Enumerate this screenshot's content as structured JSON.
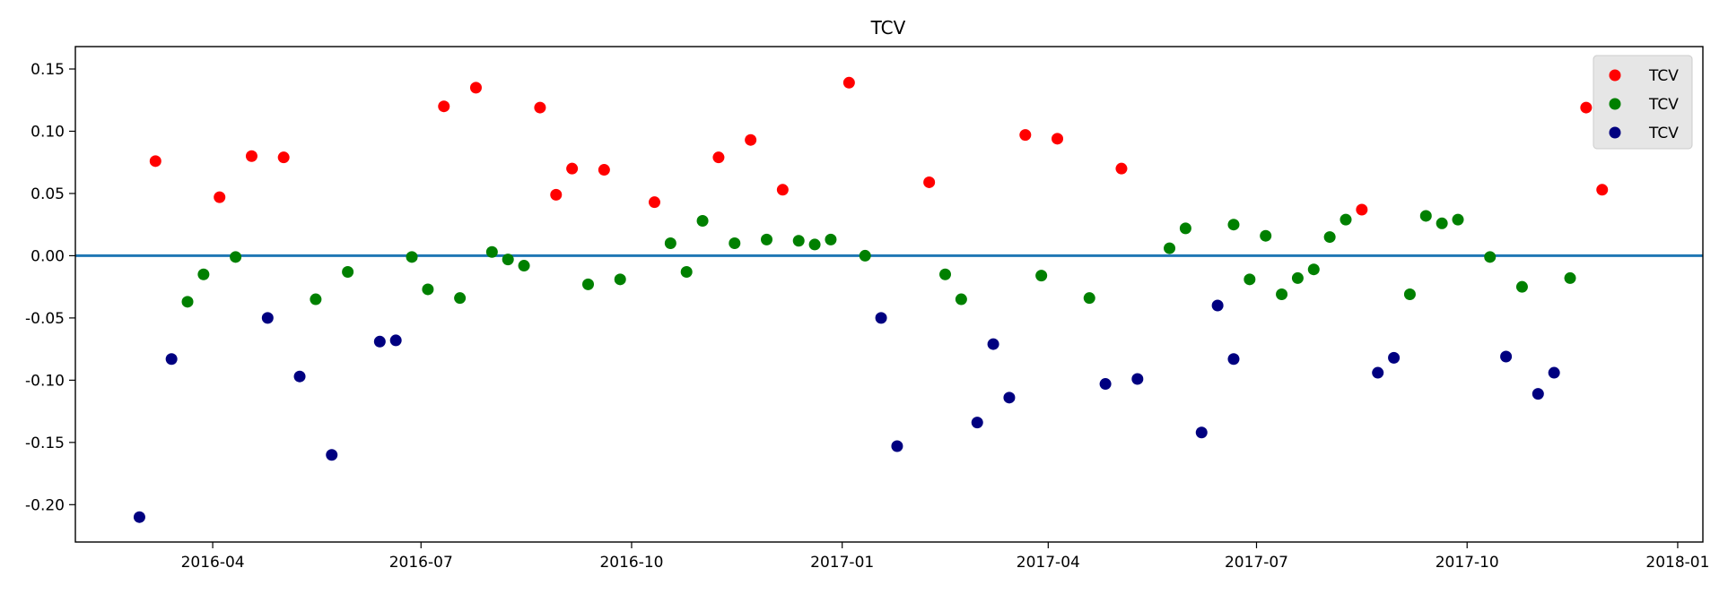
{
  "chart_data": {
    "type": "scatter",
    "title": "TCV",
    "xlabel": "",
    "ylabel": "",
    "x_axis_type": "date",
    "xlim": [
      "2016-02-01",
      "2018-01-12"
    ],
    "ylim": [
      -0.23,
      0.168
    ],
    "x_ticks": [
      {
        "date": "2016-04-01",
        "label": "2016-04"
      },
      {
        "date": "2016-07-01",
        "label": "2016-07"
      },
      {
        "date": "2016-10-01",
        "label": "2016-10"
      },
      {
        "date": "2017-01-01",
        "label": "2017-01"
      },
      {
        "date": "2017-04-01",
        "label": "2017-04"
      },
      {
        "date": "2017-07-01",
        "label": "2017-07"
      },
      {
        "date": "2017-10-01",
        "label": "2017-10"
      },
      {
        "date": "2018-01-01",
        "label": "2018-01"
      }
    ],
    "y_ticks": [
      {
        "value": 0.15,
        "label": "0.15"
      },
      {
        "value": 0.1,
        "label": "0.10"
      },
      {
        "value": 0.05,
        "label": "0.05"
      },
      {
        "value": 0.0,
        "label": "0.00"
      },
      {
        "value": -0.05,
        "label": "-0.05"
      },
      {
        "value": -0.1,
        "label": "-0.10"
      },
      {
        "value": -0.15,
        "label": "-0.15"
      },
      {
        "value": -0.2,
        "label": "-0.20"
      }
    ],
    "grid": false,
    "legend_position": "top-right",
    "reference_line": {
      "y": 0.0,
      "color": "#1f77b4"
    },
    "series": [
      {
        "name": "TCV",
        "color": "#ff0000",
        "points": [
          {
            "x": "2016-03-07",
            "y": 0.076
          },
          {
            "x": "2016-04-04",
            "y": 0.047
          },
          {
            "x": "2016-04-18",
            "y": 0.08
          },
          {
            "x": "2016-05-02",
            "y": 0.079
          },
          {
            "x": "2016-07-11",
            "y": 0.12
          },
          {
            "x": "2016-07-25",
            "y": 0.135
          },
          {
            "x": "2016-08-22",
            "y": 0.119
          },
          {
            "x": "2016-08-29",
            "y": 0.049
          },
          {
            "x": "2016-09-05",
            "y": 0.07
          },
          {
            "x": "2016-09-19",
            "y": 0.069
          },
          {
            "x": "2016-10-11",
            "y": 0.043
          },
          {
            "x": "2016-11-08",
            "y": 0.079
          },
          {
            "x": "2016-11-22",
            "y": 0.093
          },
          {
            "x": "2016-12-06",
            "y": 0.053
          },
          {
            "x": "2017-01-04",
            "y": 0.139
          },
          {
            "x": "2017-02-08",
            "y": 0.059
          },
          {
            "x": "2017-03-22",
            "y": 0.097
          },
          {
            "x": "2017-04-05",
            "y": 0.094
          },
          {
            "x": "2017-05-03",
            "y": 0.07
          },
          {
            "x": "2017-08-16",
            "y": 0.037
          },
          {
            "x": "2017-11-22",
            "y": 0.119
          },
          {
            "x": "2017-11-29",
            "y": 0.053
          }
        ]
      },
      {
        "name": "TCV",
        "color": "#008000",
        "points": [
          {
            "x": "2016-03-21",
            "y": -0.037
          },
          {
            "x": "2016-03-28",
            "y": -0.015
          },
          {
            "x": "2016-04-11",
            "y": -0.001
          },
          {
            "x": "2016-05-16",
            "y": -0.035
          },
          {
            "x": "2016-05-30",
            "y": -0.013
          },
          {
            "x": "2016-06-27",
            "y": -0.001
          },
          {
            "x": "2016-07-04",
            "y": -0.027
          },
          {
            "x": "2016-07-18",
            "y": -0.034
          },
          {
            "x": "2016-08-01",
            "y": 0.003
          },
          {
            "x": "2016-08-08",
            "y": -0.003
          },
          {
            "x": "2016-08-15",
            "y": -0.008
          },
          {
            "x": "2016-09-12",
            "y": -0.023
          },
          {
            "x": "2016-09-26",
            "y": -0.019
          },
          {
            "x": "2016-10-18",
            "y": 0.01
          },
          {
            "x": "2016-10-25",
            "y": -0.013
          },
          {
            "x": "2016-11-01",
            "y": 0.028
          },
          {
            "x": "2016-11-15",
            "y": 0.01
          },
          {
            "x": "2016-11-29",
            "y": 0.013
          },
          {
            "x": "2016-12-13",
            "y": 0.012
          },
          {
            "x": "2016-12-20",
            "y": 0.009
          },
          {
            "x": "2016-12-27",
            "y": 0.013
          },
          {
            "x": "2017-01-11",
            "y": 0.0
          },
          {
            "x": "2017-02-15",
            "y": -0.015
          },
          {
            "x": "2017-02-22",
            "y": -0.035
          },
          {
            "x": "2017-03-29",
            "y": -0.016
          },
          {
            "x": "2017-04-19",
            "y": -0.034
          },
          {
            "x": "2017-05-24",
            "y": 0.006
          },
          {
            "x": "2017-05-31",
            "y": 0.022
          },
          {
            "x": "2017-06-21",
            "y": 0.025
          },
          {
            "x": "2017-06-28",
            "y": -0.019
          },
          {
            "x": "2017-07-05",
            "y": 0.016
          },
          {
            "x": "2017-07-12",
            "y": -0.031
          },
          {
            "x": "2017-07-19",
            "y": -0.018
          },
          {
            "x": "2017-07-26",
            "y": -0.011
          },
          {
            "x": "2017-08-02",
            "y": 0.015
          },
          {
            "x": "2017-08-09",
            "y": 0.029
          },
          {
            "x": "2017-09-06",
            "y": -0.031
          },
          {
            "x": "2017-09-13",
            "y": 0.032
          },
          {
            "x": "2017-09-20",
            "y": 0.026
          },
          {
            "x": "2017-09-27",
            "y": 0.029
          },
          {
            "x": "2017-10-11",
            "y": -0.001
          },
          {
            "x": "2017-10-25",
            "y": -0.025
          },
          {
            "x": "2017-11-15",
            "y": -0.018
          }
        ]
      },
      {
        "name": "TCV",
        "color": "#000080",
        "points": [
          {
            "x": "2016-02-29",
            "y": -0.21
          },
          {
            "x": "2016-03-14",
            "y": -0.083
          },
          {
            "x": "2016-04-25",
            "y": -0.05
          },
          {
            "x": "2016-05-09",
            "y": -0.097
          },
          {
            "x": "2016-05-23",
            "y": -0.16
          },
          {
            "x": "2016-06-13",
            "y": -0.069
          },
          {
            "x": "2016-06-20",
            "y": -0.068
          },
          {
            "x": "2017-01-18",
            "y": -0.05
          },
          {
            "x": "2017-01-25",
            "y": -0.153
          },
          {
            "x": "2017-03-01",
            "y": -0.134
          },
          {
            "x": "2017-03-08",
            "y": -0.071
          },
          {
            "x": "2017-03-15",
            "y": -0.114
          },
          {
            "x": "2017-04-26",
            "y": -0.103
          },
          {
            "x": "2017-05-10",
            "y": -0.099
          },
          {
            "x": "2017-06-07",
            "y": -0.142
          },
          {
            "x": "2017-06-14",
            "y": -0.04
          },
          {
            "x": "2017-06-21",
            "y": -0.083
          },
          {
            "x": "2017-08-23",
            "y": -0.094
          },
          {
            "x": "2017-08-30",
            "y": -0.082
          },
          {
            "x": "2017-10-18",
            "y": -0.081
          },
          {
            "x": "2017-11-01",
            "y": -0.111
          },
          {
            "x": "2017-11-08",
            "y": -0.094
          }
        ]
      }
    ]
  }
}
